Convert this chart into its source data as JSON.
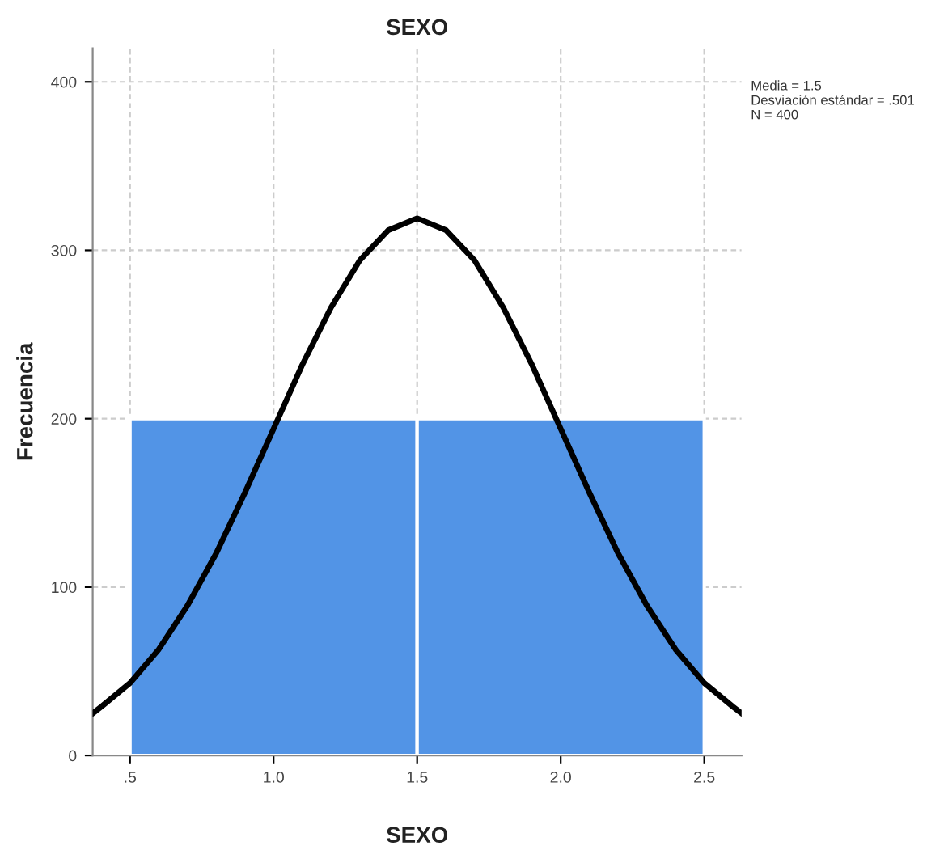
{
  "chart_data": {
    "type": "histogram",
    "title": "SEXO",
    "xlabel": "SEXO",
    "ylabel": "Frecuencia",
    "bins": [
      0.5,
      1.5,
      2.5
    ],
    "values": [
      200,
      200
    ],
    "color": "#5294e6",
    "series": [
      {
        "type": "line",
        "color": "#000000",
        "x": [
          0.37,
          0.4,
          0.5,
          0.6,
          0.7,
          0.8,
          0.9,
          1.0,
          1.1,
          1.2,
          1.3,
          1.4,
          1.5,
          1.6,
          1.7,
          1.8,
          1.9,
          2.0,
          2.1,
          2.2,
          2.3,
          2.4,
          2.5,
          2.6,
          2.63
        ],
        "values": [
          25,
          29,
          43,
          63,
          89,
          120,
          156,
          194,
          232,
          266,
          294,
          312,
          319,
          312,
          294,
          266,
          232,
          194,
          156,
          120,
          89,
          63,
          43,
          29,
          25
        ]
      }
    ],
    "xlim": [
      0.37,
      2.63
    ],
    "xticks": [
      {
        "value": 0.5,
        "label": ".5"
      },
      {
        "value": 1.0,
        "label": "1.0"
      },
      {
        "value": 1.5,
        "label": "1.5"
      },
      {
        "value": 2.0,
        "label": "2.0"
      },
      {
        "value": 2.5,
        "label": "2.5"
      }
    ],
    "ylim": [
      0,
      420
    ],
    "yticks": [
      0,
      100,
      200,
      300,
      400
    ],
    "grid": true,
    "line_style": "solid",
    "marker": "none",
    "annotations": [
      "Media = 1.5\nDesviación estándar = .501\nN = 400"
    ]
  }
}
